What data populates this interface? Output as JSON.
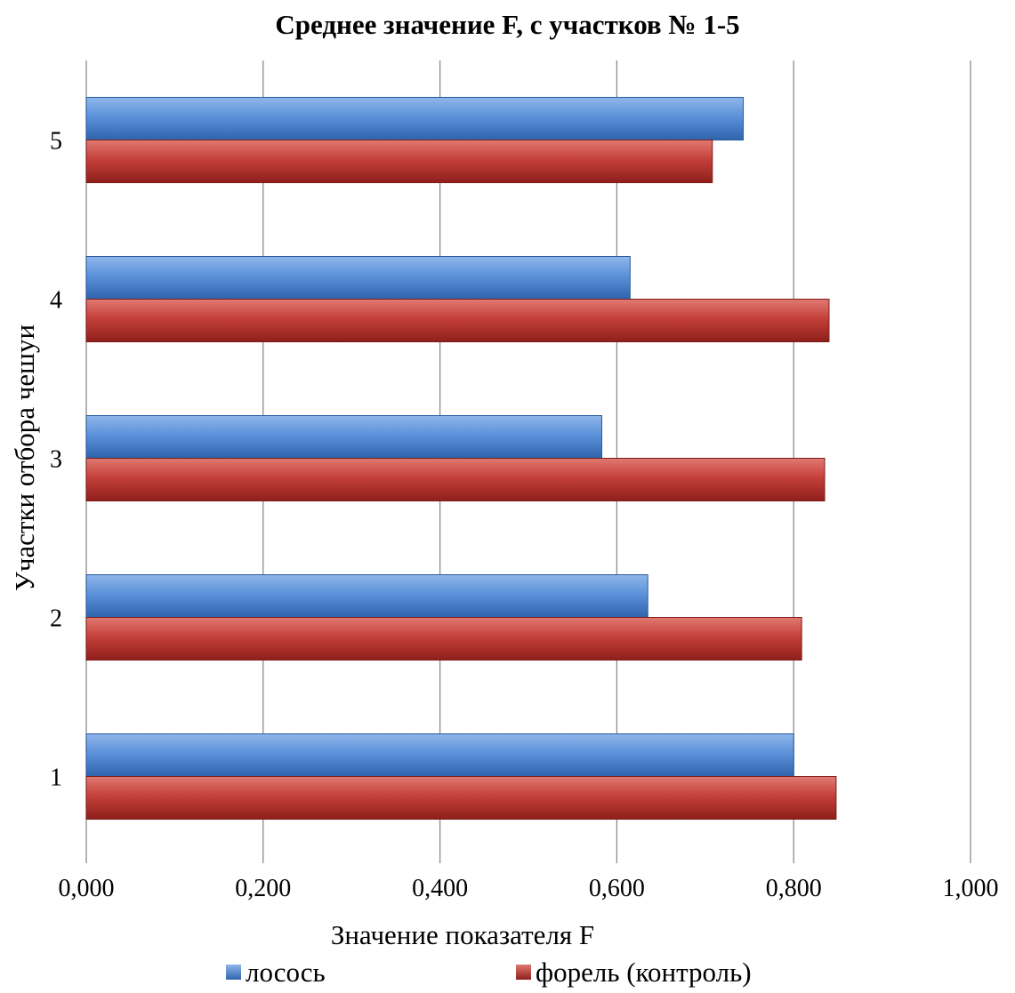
{
  "chart_data": {
    "type": "bar",
    "orientation": "horizontal",
    "title": "Среднее значение F, с участков № 1-5",
    "xlabel": "Значение показателя F",
    "ylabel": "Участки отбора чешуи",
    "categories": [
      "1",
      "2",
      "3",
      "4",
      "5"
    ],
    "xlim": [
      0,
      1
    ],
    "xticks": [
      "0,000",
      "0,200",
      "0,400",
      "0,600",
      "0,800",
      "1,000"
    ],
    "grid": "vertical",
    "legend_position": "bottom",
    "series": [
      {
        "name": "лосось",
        "color": "#4f86d0",
        "values": [
          0.8,
          0.635,
          0.583,
          0.615,
          0.743
        ]
      },
      {
        "name": "форель (контроль)",
        "color": "#c0392b",
        "values": [
          0.848,
          0.809,
          0.835,
          0.84,
          0.708
        ]
      }
    ]
  }
}
